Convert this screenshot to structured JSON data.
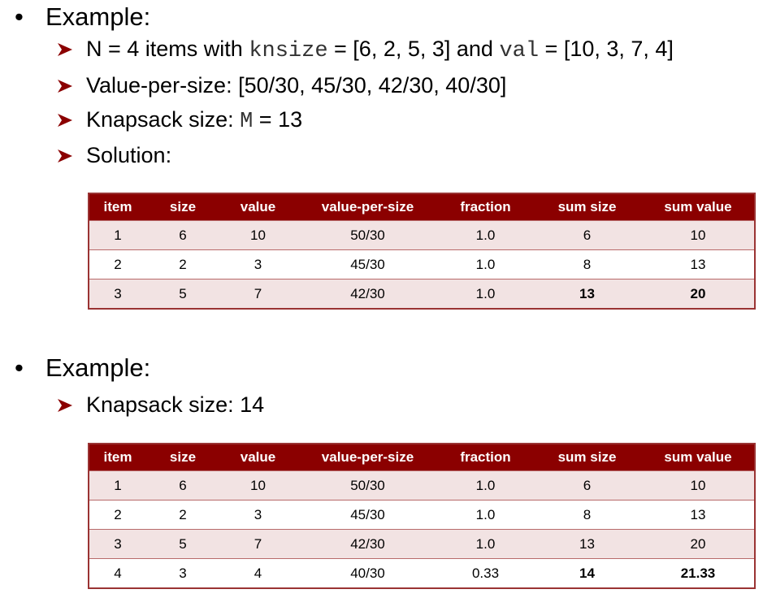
{
  "example1": {
    "heading": "Example:",
    "items": {
      "n_prefix": "N = 4 items with ",
      "knsize_var": "knsize",
      "knsize_val": " = [6, 2, 5, 3] and ",
      "val_var": "val",
      "val_val": " = [10, 3, 7, 4]",
      "vps": "Value-per-size: [50/30, 45/30, 42/30, 40/30]",
      "ks_prefix": "Knapsack size: ",
      "ks_var": "M",
      "ks_val": " = 13",
      "solution": "Solution:"
    },
    "table": {
      "headers": [
        "item",
        "size",
        "value",
        "value-per-size",
        "fraction",
        "sum size",
        "sum value"
      ],
      "rows": [
        [
          "1",
          "6",
          "10",
          "50/30",
          "1.0",
          "6",
          "10"
        ],
        [
          "2",
          "2",
          "3",
          "45/30",
          "1.0",
          "8",
          "13"
        ],
        [
          "3",
          "5",
          "7",
          "42/30",
          "1.0",
          "13",
          "20"
        ]
      ]
    }
  },
  "example2": {
    "heading": "Example:",
    "ks": "Knapsack size: 14",
    "table": {
      "headers": [
        "item",
        "size",
        "value",
        "value-per-size",
        "fraction",
        "sum size",
        "sum value"
      ],
      "rows": [
        [
          "1",
          "6",
          "10",
          "50/30",
          "1.0",
          "6",
          "10"
        ],
        [
          "2",
          "2",
          "3",
          "45/30",
          "1.0",
          "8",
          "13"
        ],
        [
          "3",
          "5",
          "7",
          "42/30",
          "1.0",
          "13",
          "20"
        ],
        [
          "4",
          "3",
          "4",
          "40/30",
          "0.33",
          "14",
          "21.33"
        ]
      ]
    }
  },
  "colors": {
    "header_bg": "#8b0000",
    "row_alt": "#f2e3e3",
    "arrow": "#8b0000"
  },
  "icons": {
    "bullet": "bullet-dot-icon",
    "sub_bullet": "arrow-right-icon"
  }
}
